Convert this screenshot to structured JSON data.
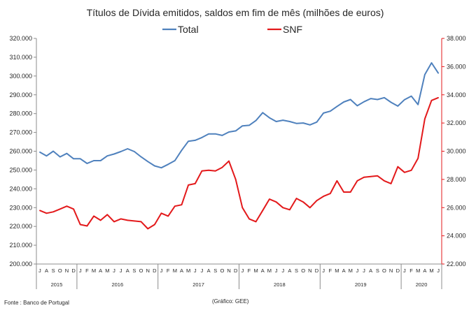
{
  "chart_data": {
    "type": "line",
    "title": "Títulos de Dívida emitidos, saldos em fim de mês  (milhões de euros)",
    "legend_position": "top",
    "grid": false,
    "x": [
      "J",
      "A",
      "S",
      "O",
      "N",
      "D",
      "J",
      "F",
      "M",
      "A",
      "M",
      "J",
      "J",
      "A",
      "S",
      "O",
      "N",
      "D",
      "J",
      "F",
      "M",
      "A",
      "M",
      "J",
      "J",
      "A",
      "S",
      "O",
      "N",
      "D",
      "J",
      "F",
      "M",
      "A",
      "M",
      "J",
      "J",
      "A",
      "S",
      "O",
      "N",
      "D",
      "J",
      "F",
      "M",
      "A",
      "M",
      "J",
      "J",
      "A",
      "S",
      "O",
      "N",
      "D",
      "J",
      "F",
      "M",
      "A",
      "M",
      "J"
    ],
    "years": [
      {
        "label": "2015",
        "start": 0,
        "count": 6
      },
      {
        "label": "2016",
        "start": 6,
        "count": 12
      },
      {
        "label": "2017",
        "start": 18,
        "count": 12
      },
      {
        "label": "2018",
        "start": 30,
        "count": 12
      },
      {
        "label": "2019",
        "start": 42,
        "count": 12
      },
      {
        "label": "2020",
        "start": 54,
        "count": 6
      }
    ],
    "y_left": {
      "ylim": [
        200000,
        320000
      ],
      "ticks": [
        "200.000",
        "210.000",
        "220.000",
        "230.000",
        "240.000",
        "250.000",
        "260.000",
        "270.000",
        "280.000",
        "290.000",
        "300.000",
        "310.000",
        "320.000"
      ]
    },
    "y_right": {
      "ylim": [
        22000,
        38000
      ],
      "ticks": [
        "22.000",
        "24.000",
        "26.000",
        "28.000",
        "30.000",
        "32.000",
        "34.000",
        "36.000",
        "38.000"
      ]
    },
    "series": [
      {
        "name": "Total",
        "axis": "left",
        "color": "#4f81bd",
        "values": [
          259500,
          257500,
          260000,
          257000,
          258800,
          256000,
          256000,
          253500,
          255000,
          255000,
          257500,
          258500,
          259800,
          261300,
          259800,
          257000,
          254500,
          252200,
          251200,
          253000,
          255000,
          260500,
          265300,
          265800,
          267300,
          269200,
          269200,
          268400,
          270200,
          270800,
          273500,
          273800,
          276300,
          280500,
          277800,
          275800,
          276500,
          275800,
          274800,
          275000,
          274000,
          275500,
          280300,
          281300,
          283800,
          286200,
          287500,
          284200,
          286300,
          288000,
          287500,
          288500,
          286000,
          284000,
          287400,
          289300,
          284800,
          300800,
          307000,
          301500
        ]
      },
      {
        "name": "SNF",
        "axis": "right",
        "color": "#e3191b",
        "values": [
          25800,
          25600,
          25700,
          25900,
          26100,
          25900,
          24800,
          24700,
          25400,
          25100,
          25500,
          25000,
          25200,
          25100,
          25050,
          25000,
          24500,
          24800,
          25600,
          25400,
          26100,
          26200,
          27600,
          27700,
          28600,
          28650,
          28600,
          28850,
          29300,
          28000,
          26000,
          25200,
          25000,
          25800,
          26600,
          26400,
          26000,
          25850,
          26650,
          26400,
          26000,
          26500,
          26800,
          27000,
          27900,
          27100,
          27100,
          27900,
          28150,
          28200,
          28250,
          27900,
          27700,
          28900,
          28500,
          28650,
          29500,
          32300,
          33600,
          33800
        ]
      }
    ],
    "footer_source": "Fonte : Banco de Portugal",
    "footer_credit": "(Gráfico: GEE)"
  }
}
